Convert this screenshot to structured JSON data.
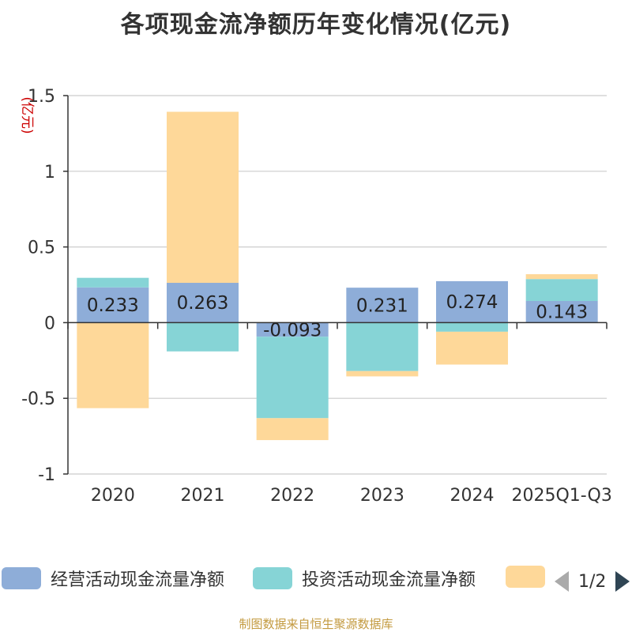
{
  "title": "各项现金流净额历年变化情况(亿元)",
  "source": "制图数据来自恒生聚源数据库",
  "legend": {
    "items": [
      {
        "label": "经营活动现金流量净额",
        "color": "#8eadd8"
      },
      {
        "label": "投资活动现金流量净额",
        "color": "#86d4d6"
      },
      {
        "label": "",
        "color": "#fed899"
      }
    ],
    "page": "1/2"
  },
  "chart_data": {
    "type": "bar",
    "stacked": true,
    "title": "各项现金流净额历年变化情况(亿元)",
    "ylabel": "(亿元)",
    "xlabel": "",
    "ylim": [
      -1,
      1.5
    ],
    "yticks": [
      -1,
      -0.5,
      0,
      0.5,
      1,
      1.5
    ],
    "ytick_labels": [
      "-1",
      "-0.5",
      "0",
      "0.5",
      "1",
      "1.5"
    ],
    "categories": [
      "2020",
      "2021",
      "2022",
      "2023",
      "2024",
      "2025Q1-Q3"
    ],
    "series": [
      {
        "name": "经营活动现金流量净额",
        "color": "#8eadd8",
        "values": [
          0.233,
          0.263,
          -0.093,
          0.231,
          0.274,
          0.143
        ],
        "labels": [
          "0.233",
          "0.263",
          "-0.093",
          "0.231",
          "0.274",
          "0.143"
        ]
      },
      {
        "name": "投资活动现金流量净额",
        "color": "#86d4d6",
        "values": [
          0.063,
          -0.19,
          -0.538,
          -0.32,
          -0.06,
          0.145
        ]
      },
      {
        "name": "",
        "color": "#fed899",
        "values": [
          -0.565,
          1.13,
          -0.145,
          -0.035,
          -0.217,
          0.032
        ]
      }
    ]
  }
}
